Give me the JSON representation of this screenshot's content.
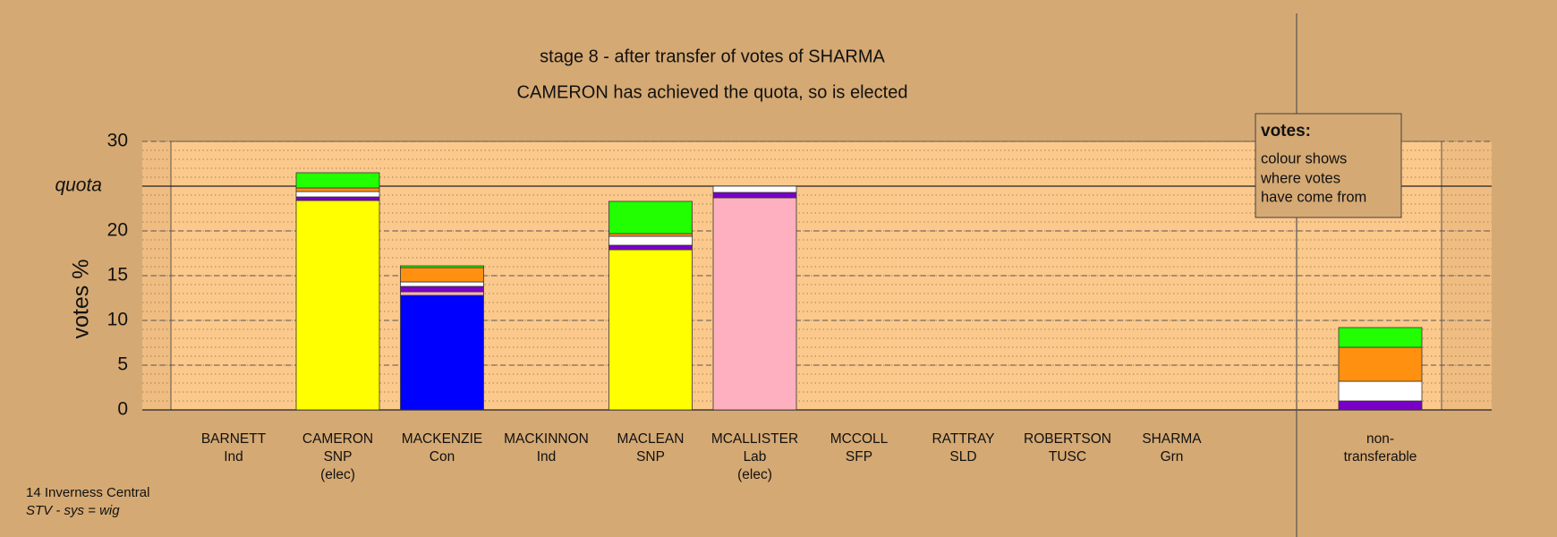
{
  "chart_data": {
    "type": "bar",
    "stacked": true,
    "title": "stage 8 - after transfer of votes of SHARMA",
    "subtitle": "CAMERON has achieved the quota, so is elected",
    "ylabel": "votes %",
    "categories": [
      [
        "BARNETT",
        "Ind"
      ],
      [
        "CAMERON",
        "SNP",
        "(elec)"
      ],
      [
        "MACKENZIE",
        "Con"
      ],
      [
        "MACKINNON",
        "Ind"
      ],
      [
        "MACLEAN",
        "SNP"
      ],
      [
        "MCALLISTER",
        "Lab",
        "(elec)"
      ],
      [
        "MCCOLL",
        "SFP"
      ],
      [
        "RATTRAY",
        "SLD"
      ],
      [
        "ROBERTSON",
        "TUSC"
      ],
      [
        "SHARMA",
        "Grn"
      ],
      [
        "non-",
        "transferable"
      ]
    ],
    "series": [
      {
        "color": "#ffff00",
        "values": [
          0,
          23.4,
          0,
          0,
          17.9,
          0,
          0,
          0,
          0,
          0,
          0
        ]
      },
      {
        "color": "#0000ff",
        "values": [
          0,
          0,
          12.8,
          0,
          0,
          0,
          0,
          0,
          0,
          0,
          0
        ]
      },
      {
        "color": "#ffb0c0",
        "values": [
          0,
          0,
          0.4,
          0,
          0,
          23.7,
          0,
          0,
          0,
          0,
          0
        ]
      },
      {
        "color": "#7a00c8",
        "values": [
          0,
          0.4,
          0.6,
          0,
          0.5,
          0.6,
          0,
          0,
          0,
          0,
          1.0
        ]
      },
      {
        "color": "#ffffff",
        "values": [
          0,
          0.6,
          0.5,
          0,
          1.0,
          0.7,
          0,
          0,
          0,
          0,
          2.2
        ]
      },
      {
        "color": "#ff9010",
        "values": [
          0,
          0.4,
          1.6,
          0,
          0.3,
          0,
          0,
          0,
          0,
          0,
          3.8
        ]
      },
      {
        "color": "#22ff00",
        "values": [
          0,
          1.7,
          0.2,
          0,
          3.6,
          0,
          0,
          0,
          0,
          0,
          2.2
        ]
      }
    ],
    "ylim": [
      0,
      30
    ],
    "yticks": [
      0,
      5,
      10,
      15,
      20,
      {
        "value": 25,
        "label": "quota"
      },
      30
    ],
    "grid": true,
    "minor_grid_step": 1,
    "annotation": {
      "title": "votes:",
      "lines": [
        "colour shows",
        "where votes",
        "have come from"
      ]
    },
    "footer": [
      "14 Inverness Central",
      "STV - sys = wig"
    ]
  }
}
